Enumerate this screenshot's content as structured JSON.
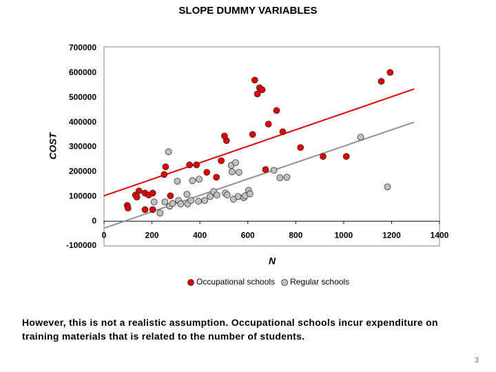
{
  "chart_data": {
    "type": "scatter",
    "title": "SLOPE DUMMY VARIABLES",
    "x_label": "N",
    "y_label": "COST",
    "xlim": [
      0,
      1400
    ],
    "ylim": [
      -100000,
      700000
    ],
    "xticks": [
      0,
      200,
      400,
      600,
      800,
      1000,
      1200,
      1400
    ],
    "yticks": [
      -100000,
      0,
      100000,
      200000,
      300000,
      400000,
      500000,
      600000,
      700000
    ],
    "legend": "bottom",
    "series": [
      {
        "name": "Occupational schools",
        "color": "#e00000",
        "x": [
          97,
          100,
          131,
          137,
          146,
          171,
          186,
          203,
          171,
          203,
          251,
          257,
          277,
          357,
          386,
          429,
          469,
          489,
          503,
          511,
          620,
          629,
          640,
          649,
          660,
          674,
          686,
          720,
          746,
          820,
          914,
          1011,
          1157,
          1194
        ],
        "values": [
          64000,
          53000,
          106000,
          97500,
          122600,
          114000,
          106000,
          114000,
          47000,
          47000,
          189000,
          220000,
          103000,
          228000,
          228000,
          198000,
          178000,
          245000,
          345000,
          326000,
          351000,
          571000,
          515000,
          540000,
          532000,
          209000,
          393000,
          448000,
          362000,
          298000,
          262000,
          262000,
          566000,
          602000
        ],
        "trendline": {
          "x": [
            0,
            1294
          ],
          "values": [
            103000,
            535000
          ],
          "color": "#e00000"
        }
      },
      {
        "name": "Regular schools",
        "color": "#c0c0c0",
        "x": [
          269,
          209,
          234,
          254,
          274,
          286,
          306,
          311,
          320,
          346,
          349,
          363,
          369,
          397,
          394,
          420,
          443,
          457,
          471,
          506,
          514,
          531,
          534,
          549,
          540,
          563,
          560,
          583,
          589,
          603,
          609,
          709,
          734,
          763,
          1071,
          1183
        ],
        "values": [
          281000,
          78000,
          33000,
          78000,
          61000,
          72000,
          162000,
          84000,
          70000,
          109000,
          70000,
          84000,
          164000,
          170000,
          81000,
          84000,
          100000,
          120000,
          106000,
          114000,
          106000,
          226000,
          200000,
          237000,
          89000,
          198000,
          100000,
          95000,
          103000,
          125000,
          111000,
          206000,
          176000,
          178000,
          340000,
          139000
        ],
        "trendline": {
          "x": [
            0,
            1294
          ],
          "values": [
            -28000,
            401000
          ],
          "color": "#909090"
        }
      }
    ]
  },
  "caption": "However, this is not a realistic assumption.  Occupational schools incur expenditure on training materials that is related to the number of students.",
  "page_number": "3"
}
